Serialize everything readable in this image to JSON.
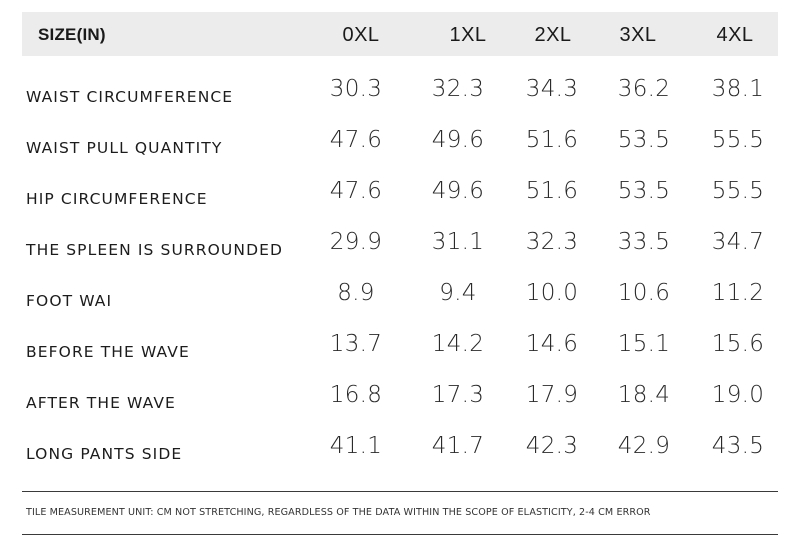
{
  "table": {
    "header": {
      "label": "SIZE(IN)",
      "sizes": [
        "0XL",
        "1XL",
        "2XL",
        "3XL",
        "4XL"
      ]
    },
    "rows": [
      {
        "label": "WAIST CIRCUMFERENCE",
        "values": [
          "30.3",
          "32.3",
          "34.3",
          "36.2",
          "38.1"
        ]
      },
      {
        "label": "WAIST PULL QUANTITY",
        "values": [
          "47.6",
          "49.6",
          "51.6",
          "53.5",
          "55.5"
        ]
      },
      {
        "label": "HIP CIRCUMFERENCE",
        "values": [
          "47.6",
          "49.6",
          "51.6",
          "53.5",
          "55.5"
        ]
      },
      {
        "label": "THE SPLEEN IS SURROUNDED",
        "values": [
          "29.9",
          "31.1",
          "32.3",
          "33.5",
          "34.7"
        ]
      },
      {
        "label": "FOOT WAI",
        "values": [
          "8.9",
          "9.4",
          "10.0",
          "10.6",
          "11.2"
        ]
      },
      {
        "label": "BEFORE THE WAVE",
        "values": [
          "13.7",
          "14.2",
          "14.6",
          "15.1",
          "15.6"
        ]
      },
      {
        "label": "AFTER THE WAVE",
        "values": [
          "16.8",
          "17.3",
          "17.9",
          "18.4",
          "19.0"
        ]
      },
      {
        "label": "LONG PANTS SIDE",
        "values": [
          "41.1",
          "41.7",
          "42.3",
          "42.9",
          "43.5"
        ]
      }
    ]
  },
  "footnote": "TILE MEASUREMENT UNIT: CM NOT STRETCHING, REGARDLESS OF THE DATA WITHIN THE SCOPE OF ELASTICITY, 2-4 CM ERROR",
  "colors": {
    "header_background": "#ececec",
    "text": "#1f1f1f",
    "divider": "#3a3a3a"
  }
}
